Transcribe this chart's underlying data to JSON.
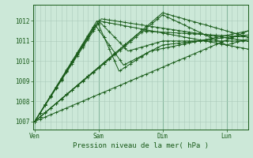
{
  "bg_color": "#cce8d8",
  "plot_bg_color": "#cce8d8",
  "grid_color_minor": "#aacaba",
  "grid_color_major": "#88b8a0",
  "line_color": "#1a5c1a",
  "marker_color": "#1a5c1a",
  "ylabel_values": [
    1007,
    1008,
    1009,
    1010,
    1011,
    1012
  ],
  "x_ticks_pos": [
    0,
    72,
    144,
    216
  ],
  "x_tick_labels": [
    "Ven",
    "Sam",
    "Dim",
    "Lun"
  ],
  "xlabel": "Pression niveau de la mer( hPa )",
  "ylim": [
    1006.6,
    1012.8
  ],
  "xlim": [
    -2,
    240
  ],
  "num_hours": 240
}
